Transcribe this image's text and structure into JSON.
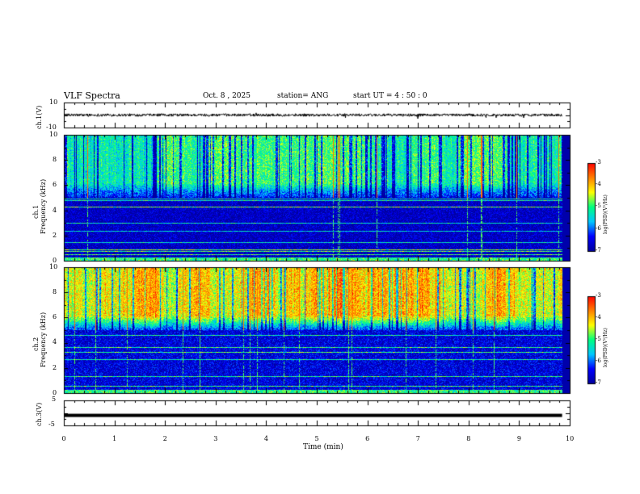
{
  "header": {
    "title": "VLF Spectra",
    "date": "Oct. 8 , 2025",
    "station": "station= ANG",
    "start": "start UT =   4 : 50 : 0"
  },
  "chart_data": [
    {
      "id": "ch1-waveform",
      "type": "line",
      "ylabel": "ch.1(V)",
      "ylim": [
        -10,
        10
      ],
      "yticks": [
        "10",
        "-10"
      ],
      "xlim": [
        0,
        10
      ],
      "data_extent_min": [
        0,
        9.85
      ],
      "mean_value": 0,
      "description_series": "broadband noise around 0 V"
    },
    {
      "id": "ch1-spectrogram",
      "type": "heatmap",
      "ylabel": "ch.1\nFrequency (kHz)",
      "ylabel_line1": "ch.1",
      "ylabel_line2": "Frequency (kHz)",
      "ylim": [
        0,
        10
      ],
      "yticks": [
        "0",
        "2",
        "4",
        "6",
        "8",
        "10"
      ],
      "colorbar": {
        "label": "log(PSD)(V²/Hz)",
        "range": [
          -7,
          -3
        ],
        "ticks": [
          "-3",
          "-4",
          "-5",
          "-6",
          "-7"
        ]
      },
      "features": {
        "quiet_band_khz": [
          0,
          5
        ],
        "active_band_khz": [
          5,
          10
        ],
        "active_level": -4.8,
        "quiet_level": -6.4
      }
    },
    {
      "id": "ch2-spectrogram",
      "type": "heatmap",
      "ylabel_line1": "ch.2",
      "ylabel_line2": "Frequency (kHz)",
      "ylim": [
        0,
        10
      ],
      "yticks": [
        "0",
        "2",
        "4",
        "6",
        "8",
        "10"
      ],
      "colorbar": {
        "label": "log(PSD)(V²/Hz)",
        "range": [
          -7,
          -3
        ],
        "ticks": [
          "-3",
          "-4",
          "-5",
          "-6",
          "-7"
        ]
      },
      "features": {
        "quiet_band_khz": [
          0,
          5
        ],
        "active_band_khz": [
          5,
          10
        ],
        "active_level": -3.8,
        "quiet_level": -6.2
      }
    },
    {
      "id": "ch3-waveform",
      "type": "line",
      "ylabel": "ch.3(V)",
      "ylim": [
        -5,
        5
      ],
      "yticks": [
        "5",
        "-5"
      ],
      "constant_value": -1
    }
  ],
  "xaxis": {
    "label": "Time (min)",
    "ticks": [
      "0",
      "1",
      "2",
      "3",
      "4",
      "5",
      "6",
      "7",
      "8",
      "9",
      "10"
    ],
    "range": [
      0,
      10
    ]
  },
  "colors": {
    "colormap": [
      "#0000a0",
      "#0000ff",
      "#00c8ff",
      "#00ff80",
      "#ffff00",
      "#ff8000",
      "#ff0000"
    ],
    "trace": "#000000"
  }
}
